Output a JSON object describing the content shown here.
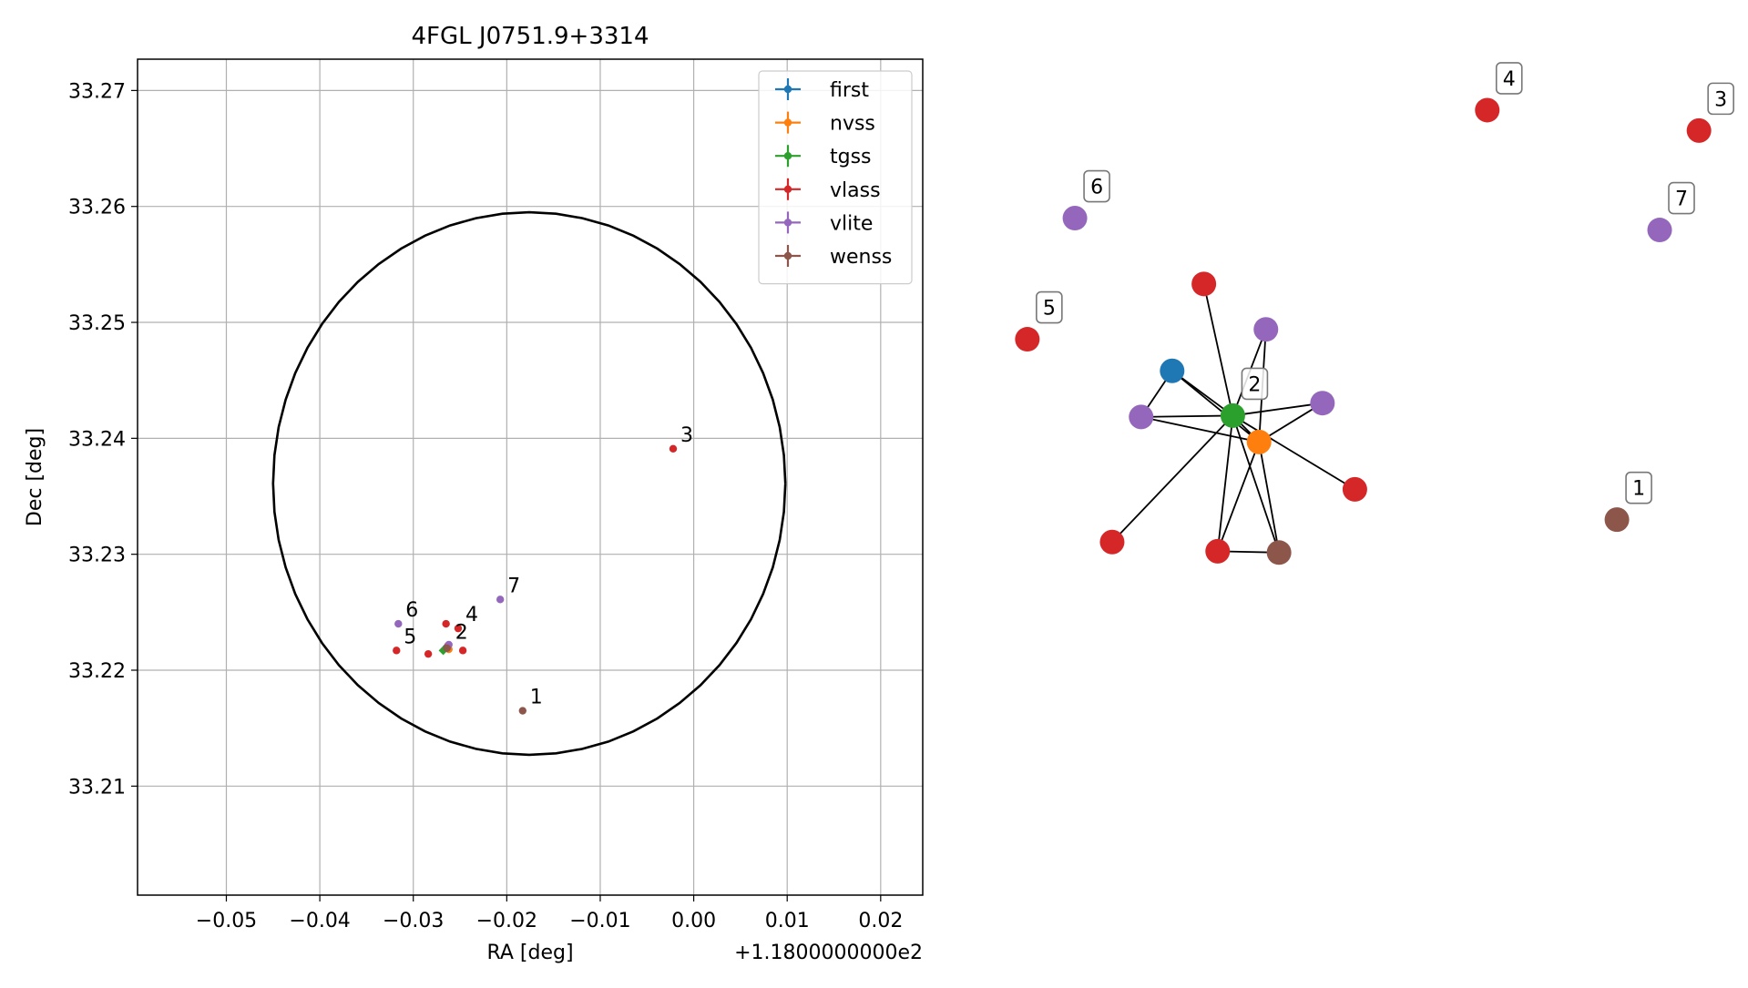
{
  "chart_data": [
    {
      "type": "scatter",
      "title": "4FGL J0751.9+3314",
      "xlabel": "RA [deg]",
      "ylabel": "Dec [deg]",
      "x_offset_label": "+1.1800000000e2",
      "xlim": [
        -0.0595,
        0.0245
      ],
      "ylim": [
        33.2006,
        33.2727
      ],
      "x_ticks": [
        -0.05,
        -0.04,
        -0.03,
        -0.02,
        -0.01,
        0.0,
        0.01,
        0.02
      ],
      "x_tick_labels": [
        "−0.05",
        "−0.04",
        "−0.03",
        "−0.02",
        "−0.01",
        "0.00",
        "0.01",
        "0.02"
      ],
      "y_ticks": [
        33.21,
        33.22,
        33.23,
        33.24,
        33.25,
        33.26,
        33.27
      ],
      "y_tick_labels": [
        "33.21",
        "33.22",
        "33.23",
        "33.24",
        "33.25",
        "33.26",
        "33.27"
      ],
      "grid": true,
      "legend_position": "top-right",
      "ellipse": {
        "center": [
          -0.0176,
          33.2361
        ],
        "rx": 0.0274,
        "ry": 0.0234,
        "color": "#000000"
      },
      "series": [
        {
          "name": "first",
          "color": "#1f77b4",
          "points": [
            [
              -0.0265,
              33.2219
            ]
          ]
        },
        {
          "name": "nvss",
          "color": "#ff7f0e",
          "points": [
            [
              -0.0262,
              33.2218
            ]
          ]
        },
        {
          "name": "tgss",
          "color": "#2ca02c",
          "points": [
            [
              -0.0268,
              33.2217
            ]
          ]
        },
        {
          "name": "vlass",
          "color": "#d62728",
          "points": [
            [
              -0.0022,
              33.2391
            ],
            [
              -0.0252,
              33.2236
            ],
            [
              -0.0318,
              33.2217
            ],
            [
              -0.0265,
              33.224
            ],
            [
              -0.0284,
              33.2214
            ],
            [
              -0.0247,
              33.2217
            ],
            [
              -0.0263,
              33.2221
            ]
          ]
        },
        {
          "name": "vlite",
          "color": "#9467bd",
          "points": [
            [
              -0.0207,
              33.2261
            ],
            [
              -0.0316,
              33.224
            ],
            [
              -0.0262,
              33.2222
            ]
          ]
        },
        {
          "name": "wenss",
          "color": "#8c564b",
          "points": [
            [
              -0.0183,
              33.2165
            ],
            [
              -0.0264,
              33.2219
            ]
          ]
        }
      ],
      "annotations": [
        {
          "text": "1",
          "x": -0.0183,
          "y": 33.2165
        },
        {
          "text": "2",
          "x": -0.0263,
          "y": 33.2221
        },
        {
          "text": "3",
          "x": -0.0022,
          "y": 33.2391
        },
        {
          "text": "4",
          "x": -0.0252,
          "y": 33.2236
        },
        {
          "text": "5",
          "x": -0.0318,
          "y": 33.2217
        },
        {
          "text": "6",
          "x": -0.0316,
          "y": 33.224
        },
        {
          "text": "7",
          "x": -0.0207,
          "y": 33.2261
        }
      ]
    },
    {
      "type": "network",
      "nodes": [
        {
          "id": "n1",
          "color": "#8c564b",
          "label": "1",
          "x": 0.868,
          "y": 0.633
        },
        {
          "id": "n2",
          "color": "#2ca02c",
          "label": "2",
          "x": 0.311,
          "y": 0.475
        },
        {
          "id": "n3",
          "color": "#d62728",
          "label": "3",
          "x": 0.987,
          "y": 0.042
        },
        {
          "id": "n4",
          "color": "#d62728",
          "label": "4",
          "x": 0.68,
          "y": 0.011
        },
        {
          "id": "n5",
          "color": "#d62728",
          "label": "5",
          "x": 0.013,
          "y": 0.359
        },
        {
          "id": "n6",
          "color": "#9467bd",
          "label": "6",
          "x": 0.082,
          "y": 0.175
        },
        {
          "id": "n7",
          "color": "#9467bd",
          "label": "7",
          "x": 0.93,
          "y": 0.193
        },
        {
          "id": "a",
          "color": "#1f77b4",
          "label": "",
          "x": 0.223,
          "y": 0.407
        },
        {
          "id": "b",
          "color": "#ff7f0e",
          "label": "",
          "x": 0.349,
          "y": 0.515
        },
        {
          "id": "c",
          "color": "#d62728",
          "label": "",
          "x": 0.269,
          "y": 0.275
        },
        {
          "id": "d",
          "color": "#9467bd",
          "label": "",
          "x": 0.359,
          "y": 0.344
        },
        {
          "id": "e",
          "color": "#9467bd",
          "label": "",
          "x": 0.178,
          "y": 0.477
        },
        {
          "id": "f",
          "color": "#9467bd",
          "label": "",
          "x": 0.441,
          "y": 0.456
        },
        {
          "id": "g",
          "color": "#d62728",
          "label": "",
          "x": 0.488,
          "y": 0.587
        },
        {
          "id": "h",
          "color": "#d62728",
          "label": "",
          "x": 0.136,
          "y": 0.667
        },
        {
          "id": "i",
          "color": "#d62728",
          "label": "",
          "x": 0.289,
          "y": 0.681
        },
        {
          "id": "j",
          "color": "#8c564b",
          "label": "",
          "x": 0.378,
          "y": 0.683
        }
      ],
      "edges": [
        [
          "n2",
          "a"
        ],
        [
          "n2",
          "b"
        ],
        [
          "n2",
          "c"
        ],
        [
          "n2",
          "d"
        ],
        [
          "n2",
          "e"
        ],
        [
          "n2",
          "f"
        ],
        [
          "n2",
          "g"
        ],
        [
          "n2",
          "h"
        ],
        [
          "n2",
          "i"
        ],
        [
          "n2",
          "j"
        ],
        [
          "a",
          "e"
        ],
        [
          "a",
          "b"
        ],
        [
          "b",
          "e"
        ],
        [
          "b",
          "d"
        ],
        [
          "b",
          "f"
        ],
        [
          "b",
          "i"
        ],
        [
          "b",
          "j"
        ],
        [
          "i",
          "j"
        ]
      ]
    }
  ]
}
